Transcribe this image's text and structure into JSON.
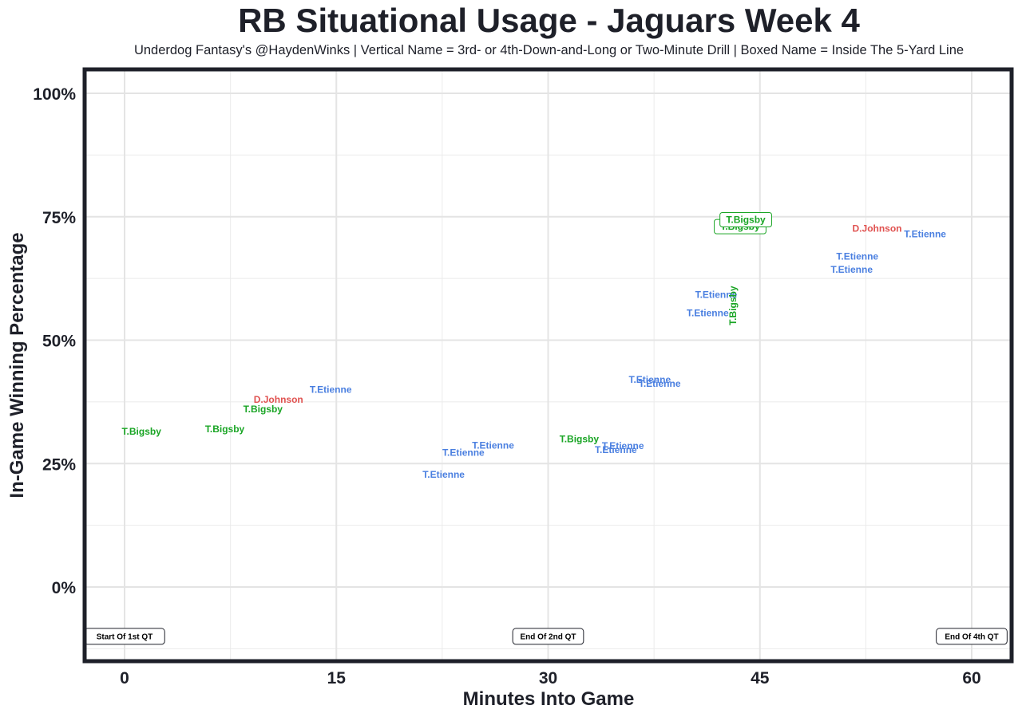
{
  "chart_data": {
    "type": "scatter",
    "title": "RB Situational Usage - Jaguars Week 4",
    "subtitle": "Underdog Fantasy's @HaydenWinks | Vertical Name = 3rd- or 4th-Down-and-Long or Two-Minute Drill | Boxed Name = Inside The 5-Yard Line",
    "xlabel": "Minutes Into Game",
    "ylabel": "In-Game Winning Percentage",
    "xlim": [
      -3,
      62.5
    ],
    "ylim": [
      -0.15,
      1.05
    ],
    "x_ticks": [
      0,
      15,
      30,
      45,
      60
    ],
    "x_tick_labels": [
      "0",
      "15",
      "30",
      "45",
      "60"
    ],
    "y_ticks": [
      0,
      0.25,
      0.5,
      0.75,
      1.0
    ],
    "y_tick_labels": [
      "0%",
      "25%",
      "50%",
      "75%",
      "100%"
    ],
    "grid": true,
    "colors": {
      "T.Etienne": "#4a7fe0",
      "T.Bigsby": "#1aa525",
      "D.Johnson": "#e05250"
    },
    "points": [
      {
        "x": 1.2,
        "y": 0.315,
        "player": "T.Bigsby",
        "style": "normal"
      },
      {
        "x": 7.1,
        "y": 0.32,
        "player": "T.Bigsby",
        "style": "normal"
      },
      {
        "x": 9.8,
        "y": 0.36,
        "player": "T.Bigsby",
        "style": "normal"
      },
      {
        "x": 10.9,
        "y": 0.38,
        "player": "D.Johnson",
        "style": "normal"
      },
      {
        "x": 14.6,
        "y": 0.4,
        "player": "T.Etienne",
        "style": "normal"
      },
      {
        "x": 22.6,
        "y": 0.228,
        "player": "T.Etienne",
        "style": "normal"
      },
      {
        "x": 24.0,
        "y": 0.272,
        "player": "T.Etienne",
        "style": "normal"
      },
      {
        "x": 26.1,
        "y": 0.287,
        "player": "T.Etienne",
        "style": "normal"
      },
      {
        "x": 32.2,
        "y": 0.3,
        "player": "T.Bigsby",
        "style": "normal"
      },
      {
        "x": 34.8,
        "y": 0.278,
        "player": "T.Etienne",
        "style": "normal"
      },
      {
        "x": 35.3,
        "y": 0.286,
        "player": "T.Etienne",
        "style": "normal"
      },
      {
        "x": 37.2,
        "y": 0.42,
        "player": "T.Etienne",
        "style": "normal"
      },
      {
        "x": 37.9,
        "y": 0.412,
        "player": "T.Etienne",
        "style": "normal"
      },
      {
        "x": 41.3,
        "y": 0.555,
        "player": "T.Etienne",
        "style": "normal"
      },
      {
        "x": 41.9,
        "y": 0.592,
        "player": "T.Etienne",
        "style": "normal"
      },
      {
        "x": 43.1,
        "y": 0.57,
        "player": "T.Bigsby",
        "style": "vertical"
      },
      {
        "x": 43.6,
        "y": 0.73,
        "player": "T.Bigsby",
        "style": "boxed"
      },
      {
        "x": 44.0,
        "y": 0.744,
        "player": "T.Bigsby",
        "style": "boxed"
      },
      {
        "x": 51.5,
        "y": 0.643,
        "player": "T.Etienne",
        "style": "normal"
      },
      {
        "x": 51.9,
        "y": 0.67,
        "player": "T.Etienne",
        "style": "normal"
      },
      {
        "x": 53.3,
        "y": 0.726,
        "player": "D.Johnson",
        "style": "normal"
      },
      {
        "x": 56.7,
        "y": 0.715,
        "player": "T.Etienne",
        "style": "normal"
      }
    ],
    "annotations": [
      {
        "x": 0,
        "y": -0.1,
        "text": "Start Of 1st QT"
      },
      {
        "x": 30,
        "y": -0.1,
        "text": "End Of 2nd QT"
      },
      {
        "x": 60,
        "y": -0.1,
        "text": "End Of 4th QT"
      }
    ]
  }
}
